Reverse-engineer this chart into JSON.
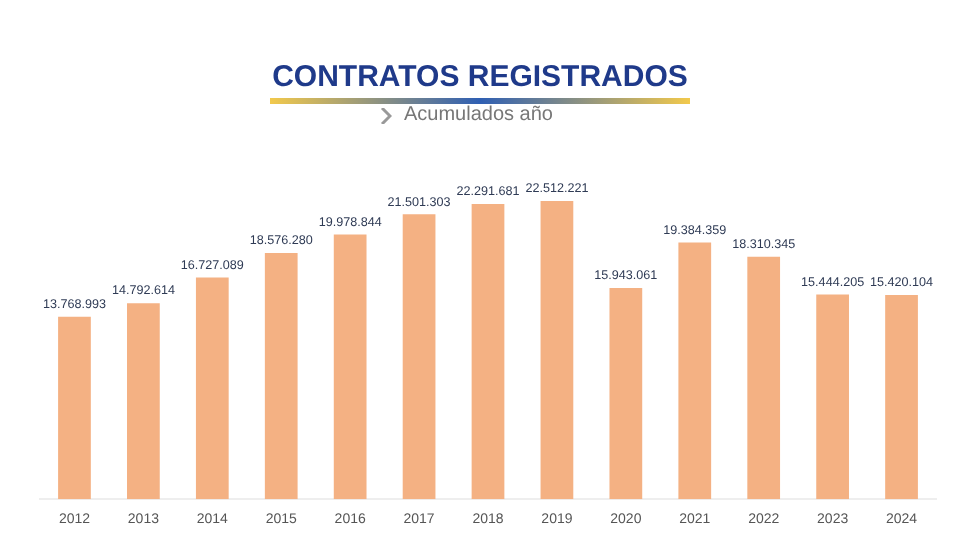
{
  "chart_data": {
    "type": "bar",
    "title": "CONTRATOS REGISTRADOS",
    "subtitle": "Acumulados año",
    "categories": [
      "2012",
      "2013",
      "2014",
      "2015",
      "2016",
      "2017",
      "2018",
      "2019",
      "2020",
      "2021",
      "2022",
      "2023",
      "2024"
    ],
    "values": [
      13768993,
      14792614,
      16727089,
      18576280,
      19978844,
      21501303,
      22291681,
      22512221,
      15943061,
      19384359,
      18310345,
      15444205,
      15420104
    ],
    "value_labels": [
      "13.768.993",
      "14.792.614",
      "16.727.089",
      "18.576.280",
      "19.978.844",
      "21.501.303",
      "22.291.681",
      "22.512.221",
      "15.943.061",
      "19.384.359",
      "18.310.345",
      "15.444.205",
      "15.420.104"
    ],
    "color": "#f4b183",
    "relative": false,
    "grid": false,
    "legend": false
  }
}
